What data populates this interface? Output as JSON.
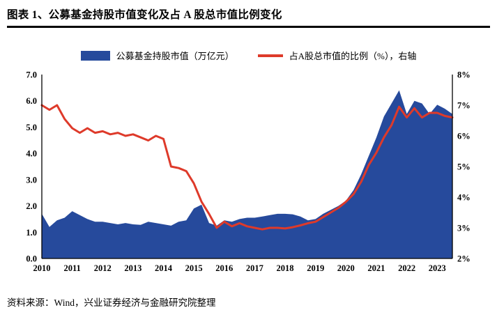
{
  "header": {
    "title": "图表 1、公募基金持股市值变化及占 A 股总市值比例变化"
  },
  "legend": {
    "area_label": "公募基金持股市值（万亿元）",
    "line_label": "占A股总市值的比例（%），右轴"
  },
  "footer": {
    "source": "资料来源：Wind，兴业证券经济与金融研究院整理"
  },
  "colors": {
    "area": "#264A9C",
    "line": "#DE3A2A",
    "axis": "#000000"
  },
  "chart_data": {
    "type": "area+line",
    "x_start_year": 2010,
    "x_step_years": 0.25,
    "x_tick_labels": [
      "2010",
      "2011",
      "2012",
      "2013",
      "2014",
      "2015",
      "2016",
      "2017",
      "2018",
      "2019",
      "2020",
      "2021",
      "2022",
      "2023"
    ],
    "left_axis": {
      "min": 0,
      "max": 7,
      "tick_labels": [
        "7.0",
        "6.0",
        "5.0",
        "4.0",
        "3.0",
        "2.0",
        "1.0",
        "0.0"
      ]
    },
    "right_axis": {
      "min": 2,
      "max": 8,
      "tick_labels": [
        "8%",
        "7%",
        "6%",
        "5%",
        "4%",
        "3%",
        "2%"
      ]
    },
    "grid": false,
    "legend_position": "top",
    "series": [
      {
        "name": "公募基金持股市值（万亿元）",
        "type": "area",
        "axis": "left",
        "values": [
          1.7,
          1.2,
          1.45,
          1.55,
          1.8,
          1.65,
          1.5,
          1.4,
          1.4,
          1.35,
          1.3,
          1.35,
          1.3,
          1.28,
          1.4,
          1.35,
          1.3,
          1.25,
          1.4,
          1.45,
          1.9,
          2.05,
          1.35,
          1.25,
          1.45,
          1.4,
          1.5,
          1.55,
          1.55,
          1.6,
          1.65,
          1.7,
          1.7,
          1.68,
          1.6,
          1.45,
          1.5,
          1.7,
          1.85,
          2.0,
          2.2,
          2.6,
          3.2,
          3.9,
          4.6,
          5.4,
          5.9,
          6.4,
          5.5,
          6.0,
          5.9,
          5.5,
          5.85,
          5.7,
          5.5
        ]
      },
      {
        "name": "占A股总市值的比例（%），右轴",
        "type": "line",
        "axis": "right",
        "values": [
          7.0,
          6.85,
          7.0,
          6.55,
          6.25,
          6.1,
          6.25,
          6.1,
          6.15,
          6.05,
          6.1,
          6.0,
          6.05,
          5.95,
          5.85,
          6.0,
          5.9,
          5.0,
          4.95,
          4.85,
          4.45,
          3.85,
          3.45,
          3.0,
          3.2,
          3.05,
          3.15,
          3.05,
          3.0,
          2.95,
          3.0,
          3.0,
          2.98,
          3.02,
          3.08,
          3.15,
          3.2,
          3.35,
          3.5,
          3.65,
          3.85,
          4.1,
          4.5,
          5.05,
          5.45,
          5.95,
          6.35,
          6.95,
          6.6,
          6.9,
          6.6,
          6.75,
          6.75,
          6.65,
          6.6
        ]
      }
    ]
  }
}
